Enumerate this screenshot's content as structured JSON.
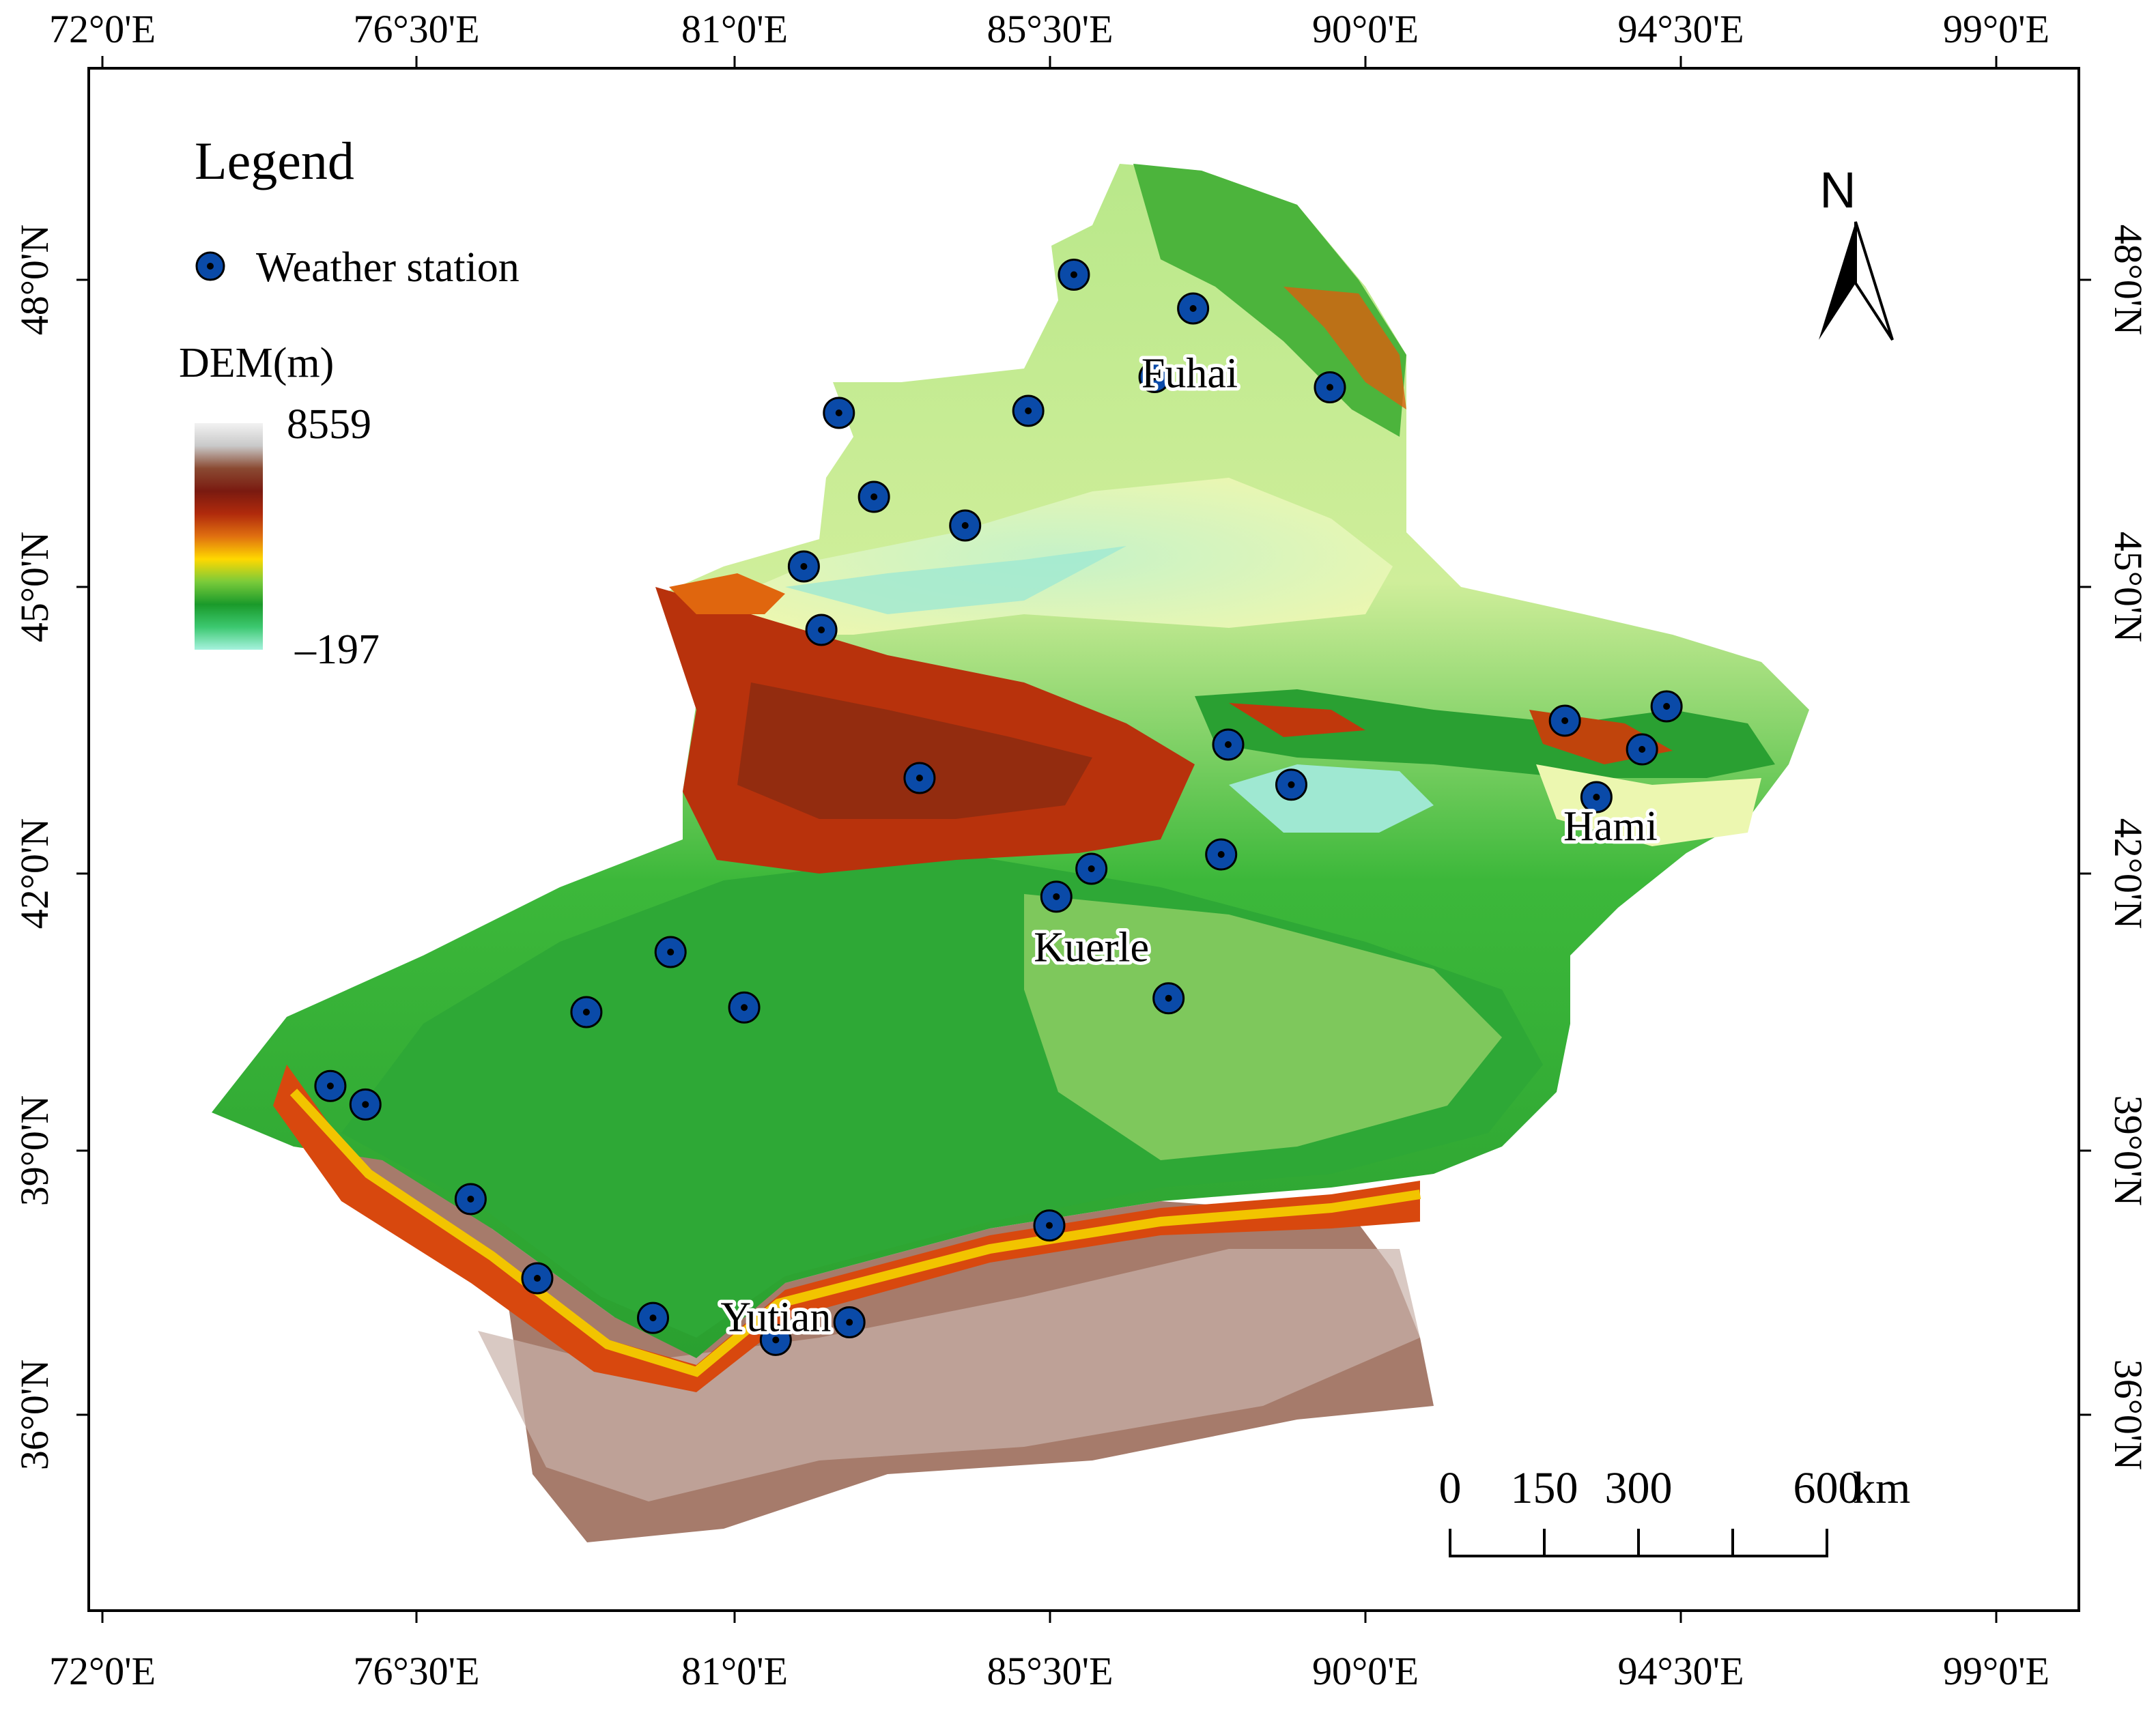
{
  "map": {
    "legend_title": "Legend",
    "station_legend_label": "Weather station",
    "dem_title": "DEM(m)",
    "dem_max": "8559",
    "dem_min": "–197",
    "dem_colors": [
      "#f2f2f2",
      "#c9c9c9",
      "#8a4a32",
      "#7a1a10",
      "#b02a0c",
      "#e07010",
      "#ffd800",
      "#7acb3a",
      "#1a9a2a",
      "#3cc870",
      "#a6f2de"
    ],
    "station_color": "#0a4aa8",
    "north_label": "N",
    "scale": {
      "labels": [
        "0",
        "150",
        "300",
        "600"
      ],
      "unit": "km"
    },
    "lon_ticks": [
      "72°0'E",
      "76°30'E",
      "81°0'E",
      "85°30'E",
      "90°0'E",
      "94°30'E",
      "99°0'E"
    ],
    "lat_ticks": [
      "48°0'N",
      "45°0'N",
      "42°0'N",
      "39°0'N",
      "36°0'N"
    ],
    "cities": [
      {
        "name": "Fuhai",
        "lon": 87.5,
        "lat": 46.95
      },
      {
        "name": "Hami",
        "lon": 93.5,
        "lat": 42.35
      },
      {
        "name": "Kuerle",
        "lon": 86.1,
        "lat": 41.05
      },
      {
        "name": "Yutian",
        "lon": 81.6,
        "lat": 36.95
      }
    ],
    "stations": [
      {
        "lon": 85.85,
        "lat": 48.05
      },
      {
        "lon": 87.55,
        "lat": 47.72
      },
      {
        "lon": 87.0,
        "lat": 47.05
      },
      {
        "lon": 89.5,
        "lat": 46.95
      },
      {
        "lon": 85.2,
        "lat": 46.72
      },
      {
        "lon": 82.5,
        "lat": 46.7
      },
      {
        "lon": 83.0,
        "lat": 45.88
      },
      {
        "lon": 84.3,
        "lat": 45.6
      },
      {
        "lon": 82.0,
        "lat": 45.2
      },
      {
        "lon": 82.25,
        "lat": 44.55
      },
      {
        "lon": 92.85,
        "lat": 43.6
      },
      {
        "lon": 94.3,
        "lat": 43.75
      },
      {
        "lon": 93.95,
        "lat": 43.3
      },
      {
        "lon": 88.05,
        "lat": 43.35
      },
      {
        "lon": 83.65,
        "lat": 43.0
      },
      {
        "lon": 88.95,
        "lat": 42.93
      },
      {
        "lon": 93.3,
        "lat": 42.8
      },
      {
        "lon": 87.95,
        "lat": 42.2
      },
      {
        "lon": 86.1,
        "lat": 42.05
      },
      {
        "lon": 85.6,
        "lat": 41.75
      },
      {
        "lon": 80.1,
        "lat": 41.15
      },
      {
        "lon": 78.9,
        "lat": 40.5
      },
      {
        "lon": 81.15,
        "lat": 40.55
      },
      {
        "lon": 87.2,
        "lat": 40.65
      },
      {
        "lon": 75.25,
        "lat": 39.7
      },
      {
        "lon": 75.75,
        "lat": 39.5
      },
      {
        "lon": 77.25,
        "lat": 38.45
      },
      {
        "lon": 85.5,
        "lat": 38.15
      },
      {
        "lon": 78.2,
        "lat": 37.55
      },
      {
        "lon": 79.85,
        "lat": 37.1
      },
      {
        "lon": 82.65,
        "lat": 37.05
      },
      {
        "lon": 81.6,
        "lat": 36.85
      }
    ]
  }
}
